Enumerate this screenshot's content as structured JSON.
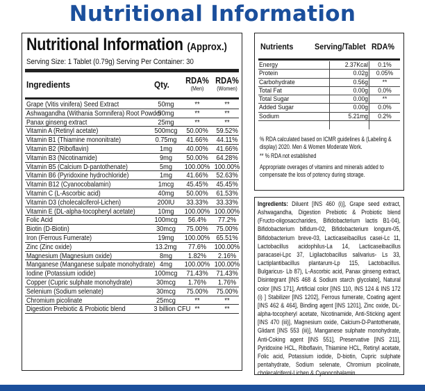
{
  "page_heading": "Nutritional Information",
  "left_panel": {
    "title": "Nutritional Information",
    "approx": "(Approx.)",
    "serving_line": "Serving Size: 1 Tablet (0.79g) Serving Per Container: 30",
    "headers": {
      "ingredients": "Ingredients",
      "qty": "Qty.",
      "rda": "RDA%",
      "men": "(Men)",
      "women": "(Women)"
    },
    "rows": [
      {
        "name": "Grape (Vitis vinifera) Seed Extract",
        "qty": "50mg",
        "men": "**",
        "women": "**"
      },
      {
        "name": "Ashwagandha (Withania Somnifera) Root Powder",
        "qty": "50mg",
        "men": "**",
        "women": "**"
      },
      {
        "name": "Panax ginseng extract",
        "qty": "25mg",
        "men": "**",
        "women": "**"
      },
      {
        "name": "Vitamin A (Retinyl acetate)",
        "qty": "500mcg",
        "men": "50.00%",
        "women": "59.52%"
      },
      {
        "name": "Vitamin B1 (Thiamine mononitrate)",
        "qty": "0.75mg",
        "men": "41.66%",
        "women": "44.11%"
      },
      {
        "name": "Vitamin B2 (Riboflavin)",
        "qty": "1mg",
        "men": "40.00%",
        "women": "41.66%"
      },
      {
        "name": "Vitamin B3 (Nicotinamide)",
        "qty": "9mg",
        "men": "50.00%",
        "women": "64.28%"
      },
      {
        "name": "Vitamin B5 (Calcium D-pantothenate)",
        "qty": "5mg",
        "men": "100.00%",
        "women": "100.00%"
      },
      {
        "name": "Vitamin B6 (Pyridoxine hydrochloride)",
        "qty": "1mg",
        "men": "41.66%",
        "women": "52.63%"
      },
      {
        "name": "Vitamin B12 (Cyanocobalamin)",
        "qty": "1mcg",
        "men": "45.45%",
        "women": "45.45%"
      },
      {
        "name": "Vitamin C (L-Ascorbic acid)",
        "qty": "40mg",
        "men": "50.00%",
        "women": "61.53%"
      },
      {
        "name": "Vitamin D3 (cholecalciferol-Lichen)",
        "qty": "200IU",
        "men": "33.33%",
        "women": "33.33%"
      },
      {
        "name": "Vitamin E (DL-alpha-tocopheryl acetate)",
        "qty": "10mg",
        "men": "100.00%",
        "women": "100.00%"
      },
      {
        "name": "Folic Acid",
        "qty": "100mcg",
        "men": "56.4%",
        "women": "77.2%"
      },
      {
        "name": "Biotin (D-Biotin)",
        "qty": "30mcg",
        "men": "75.00%",
        "women": "75.00%"
      },
      {
        "name": "Iron (Ferrous Fumerate)",
        "qty": "19mg",
        "men": "100.00%",
        "women": "65.51%"
      },
      {
        "name": "Zinc (Zinc oxide)",
        "qty": "13.2mg",
        "men": "77.6%",
        "women": "100.00%"
      },
      {
        "name": "Magnesium (Magnesium oxide)",
        "qty": "8mg",
        "men": "1.82%",
        "women": "2.16%"
      },
      {
        "name": "Manganese (Manganese sulpate monohydrate)",
        "qty": "4mg",
        "men": "100.00%",
        "women": "100.00%"
      },
      {
        "name": "Iodine (Potassium iodide)",
        "qty": "100mcg",
        "men": "71.43%",
        "women": "71.43%"
      },
      {
        "name": "Copper (Cupric sulphate monohydrate)",
        "qty": "30mcg",
        "men": "1.76%",
        "women": "1.76%"
      },
      {
        "name": "Selenium (Sodium selenate)",
        "qty": "30mcg",
        "men": "75.00%",
        "women": "75.00%"
      },
      {
        "name": "Chromium picolinate",
        "qty": "25mcg",
        "men": "**",
        "women": "**"
      },
      {
        "name": "Digestion Prebiotic & Probiotic blend",
        "qty": "3 billion CFU",
        "men": "**",
        "women": "**"
      }
    ]
  },
  "right_panel": {
    "headers": {
      "nutrients": "Nutrients",
      "serving": "Serving/Tablet",
      "rda": "RDA%"
    },
    "rows": [
      {
        "name": "Energy",
        "value": "2.37Kcal",
        "rda": "0.1%"
      },
      {
        "name": "Protein",
        "value": "0.02g",
        "rda": "0.05%"
      },
      {
        "name": "Carbohydrate",
        "value": "0.56g",
        "rda": "**"
      },
      {
        "name": "Total Fat",
        "value": "0.00g",
        "rda": "0.0%"
      },
      {
        "name": "Total Sugar",
        "value": "0.00g",
        "rda": "**"
      },
      {
        "name": "Added Sugar",
        "value": "0.00g",
        "rda": "0.0%"
      },
      {
        "name": "Sodium",
        "value": "5.21mg",
        "rda": "0.2%"
      }
    ],
    "note_rda": "% RDA calculated based on ICMR guidelines & (Labeling & display) 2020. Men & Women Moderate Work.",
    "note_no_rda": "** % RDA not established",
    "note_overages": "Appropriate overages of vitamins and minerals added to compensate the loss of potency during storage."
  },
  "ingredients_box": {
    "label": "Ingredients:",
    "text": "Diluent [INS 460 (i)], Grape seed extract, Ashwagandha, Digestion Prebiotic & Probiotic blend (Fructo-oligosaccharides, Bifidobacterium lactis B1-04), Bifidobacterium bifidum-02, Bifidobacterium longum-05, Bifidobacterium breve-03, Lacticaseibacillus casei-Lc 11, Lactobacillus acidophilus-La 14, Lacticaseibacillus paracasei-Lpc 37, Ligilactobacillus salivarius- Ls 33, Lactiplantibacillus plantarum-Lp 115, Lactobacillus. Bulgaricus- Lb 87), L-Ascorbic acid, Panax ginseng extract, Disintegrant [INS 468 & Sodium starch glycolate], Natural color [INS 171], Artificial color [INS 110, INS 124 & INS 172 (i) ] Stabilizer [INS 1202], Ferrous fumerate, Coating agent [INS 462 & 464], Binding agent [INS 1201], Zinc oxide, DL-alpha-tocopheryl acetate, Nicotinamide, Anti-Sticking agent [INS 470 (iii)], Magnesium oxide, Calcium-D-Pantothenate, Glidant [INS 553 (iii)], Manganese sulphate monohydrate, Anti-Coking agent [INS 551], Preservative [INS 211], Pyridoxine HCL, Riboflavin, Thiamine HCL, Retinyl acetate, Folic acid, Potassium iodide, D-biotin, Cupric sulphate pentahydrate, Sodium selenate, Chromium picolinate, cholecalciferol-Lichen & Cyanocobalamin."
  },
  "colors": {
    "heading_blue": "#1b4f9c",
    "border": "#222222"
  }
}
